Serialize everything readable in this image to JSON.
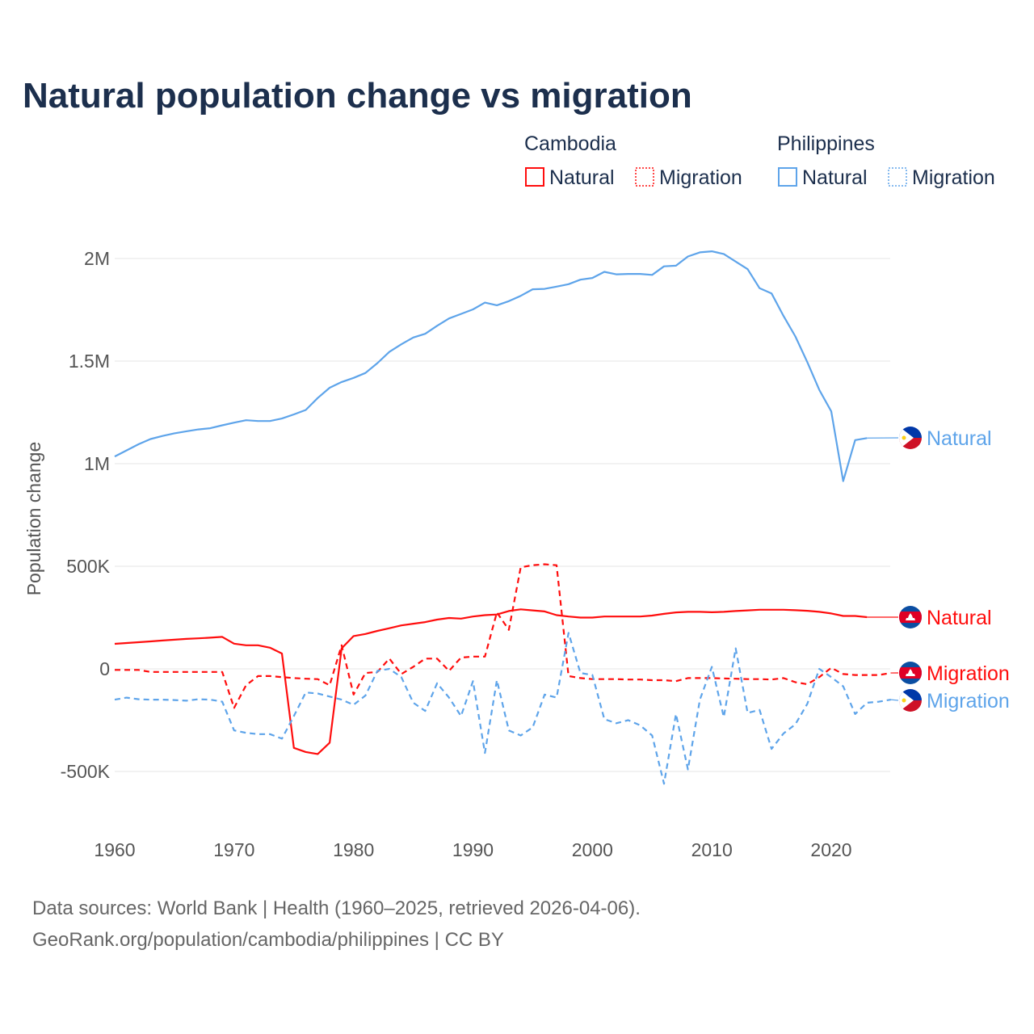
{
  "chart_data": {
    "type": "line",
    "title": "Natural population change vs migration",
    "ylabel": "Population change",
    "xlabel": "",
    "xlim": [
      1960,
      2025
    ],
    "ylim": [
      -600000,
      2100000
    ],
    "x_ticks": [
      1960,
      1970,
      1980,
      1990,
      2000,
      2010,
      2020
    ],
    "x_tick_labels": [
      "1960",
      "1970",
      "1980",
      "1990",
      "2000",
      "2010",
      "2020"
    ],
    "y_ticks": [
      -500000,
      0,
      500000,
      1000000,
      1500000,
      2000000
    ],
    "y_tick_labels": [
      "-500K",
      "0",
      "500K",
      "1M",
      "1.5M",
      "2M"
    ],
    "grid": true,
    "legend_groups": [
      {
        "country": "Cambodia",
        "items": [
          "Natural",
          "Migration"
        ]
      },
      {
        "country": "Philippines",
        "items": [
          "Natural",
          "Migration"
        ]
      }
    ],
    "series": [
      {
        "name": "Philippines Natural",
        "country": "Philippines",
        "kind": "Natural",
        "color": "#5ea4ea",
        "dash": false,
        "start_year": 1960,
        "values_k": [
          1035,
          1065,
          1095,
          1120,
          1135,
          1148,
          1158,
          1167,
          1173,
          1187,
          1200,
          1212,
          1208,
          1208,
          1220,
          1240,
          1262,
          1320,
          1370,
          1398,
          1418,
          1442,
          1490,
          1545,
          1582,
          1615,
          1633,
          1672,
          1708,
          1730,
          1752,
          1785,
          1772,
          1792,
          1818,
          1850,
          1852,
          1863,
          1875,
          1897,
          1905,
          1935,
          1923,
          1925,
          1925,
          1920,
          1962,
          1965,
          2010,
          2030,
          2035,
          2022,
          1985,
          1948,
          1855,
          1830,
          1720,
          1620,
          1495,
          1360,
          1255,
          915,
          1115,
          1125
        ]
      },
      {
        "name": "Cambodia Natural",
        "country": "Cambodia",
        "kind": "Natural",
        "color": "#ff0d0d",
        "dash": false,
        "start_year": 1960,
        "values_k": [
          122,
          126,
          130,
          134,
          138,
          142,
          146,
          149,
          152,
          156,
          123,
          115,
          115,
          103,
          75,
          -385,
          -405,
          -415,
          -360,
          100,
          160,
          170,
          185,
          198,
          212,
          220,
          228,
          240,
          248,
          245,
          255,
          262,
          265,
          282,
          290,
          285,
          280,
          262,
          255,
          250,
          250,
          255,
          255,
          255,
          255,
          260,
          268,
          275,
          278,
          278,
          276,
          278,
          282,
          285,
          288,
          288,
          288,
          286,
          283,
          278,
          270,
          258,
          258,
          252
        ]
      },
      {
        "name": "Cambodia Migration",
        "country": "Cambodia",
        "kind": "Migration",
        "color": "#ff0d0d",
        "dash": true,
        "start_year": 1960,
        "values_k": [
          -5,
          -5,
          -5,
          -15,
          -15,
          -15,
          -15,
          -15,
          -15,
          -15,
          -190,
          -80,
          -35,
          -35,
          -40,
          -45,
          -48,
          -50,
          -80,
          115,
          -125,
          -20,
          -15,
          50,
          -25,
          10,
          50,
          50,
          -10,
          55,
          60,
          60,
          275,
          190,
          495,
          505,
          510,
          505,
          -35,
          -45,
          -50,
          -50,
          -50,
          -52,
          -52,
          -55,
          -55,
          -60,
          -45,
          -45,
          -45,
          -47,
          -48,
          -50,
          -50,
          -52,
          -45,
          -65,
          -75,
          -40,
          5,
          -25,
          -30,
          -30,
          -30,
          -20
        ]
      },
      {
        "name": "Philippines Migration",
        "country": "Philippines",
        "kind": "Migration",
        "color": "#5ea4ea",
        "dash": true,
        "start_year": 1960,
        "values_k": [
          -150,
          -140,
          -148,
          -150,
          -150,
          -152,
          -155,
          -148,
          -150,
          -160,
          -300,
          -312,
          -318,
          -318,
          -340,
          -230,
          -115,
          -120,
          -135,
          -150,
          -175,
          -130,
          -10,
          0,
          -40,
          -165,
          -205,
          -70,
          -140,
          -230,
          -60,
          -410,
          -55,
          -300,
          -325,
          -285,
          -125,
          -140,
          175,
          -20,
          -30,
          -245,
          -265,
          -250,
          -275,
          -325,
          -560,
          -220,
          -490,
          -150,
          10,
          -235,
          100,
          -215,
          -200,
          -390,
          -315,
          -270,
          -170,
          0,
          -40,
          -85,
          -220,
          -165,
          -160,
          -150
        ]
      }
    ],
    "end_labels": [
      "Natural",
      "Natural",
      "Migration",
      "Migration"
    ]
  },
  "footer": {
    "line1": "Data sources: World Bank | Health (1960–2025, retrieved 2026-04-06).",
    "line2": "GeoRank.org/population/cambodia/philippines | CC BY"
  }
}
